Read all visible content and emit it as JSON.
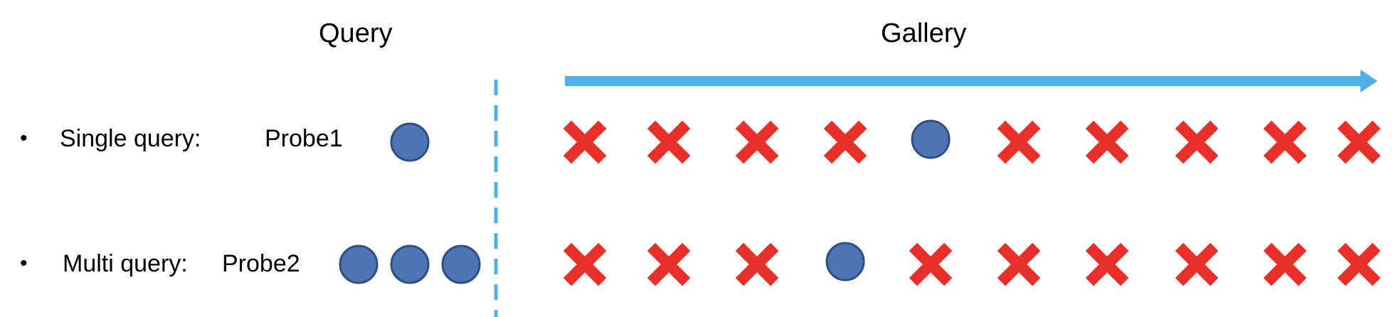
{
  "headers": {
    "query": "Query",
    "gallery": "Gallery"
  },
  "rows": [
    {
      "bullet": "•",
      "label": "Single query:",
      "probe": "Probe1",
      "query_probe_count": 1,
      "gallery": [
        "x",
        "x",
        "x",
        "x",
        "o",
        "x",
        "x",
        "x",
        "x",
        "x"
      ]
    },
    {
      "bullet": "•",
      "label": "Multi query:",
      "probe": "Probe2",
      "query_probe_count": 3,
      "gallery": [
        "x",
        "x",
        "x",
        "o",
        "x",
        "x",
        "x",
        "x",
        "x",
        "x"
      ]
    }
  ],
  "colors": {
    "probe_fill": "#4f74b4",
    "probe_stroke": "#2f4e82",
    "cross": "#e8302a",
    "arrow": "#4fb0e8",
    "divider": "#4fb0e8"
  },
  "icons": {
    "match": "circle-icon",
    "mismatch": "cross-icon",
    "direction": "arrow-right-icon"
  }
}
